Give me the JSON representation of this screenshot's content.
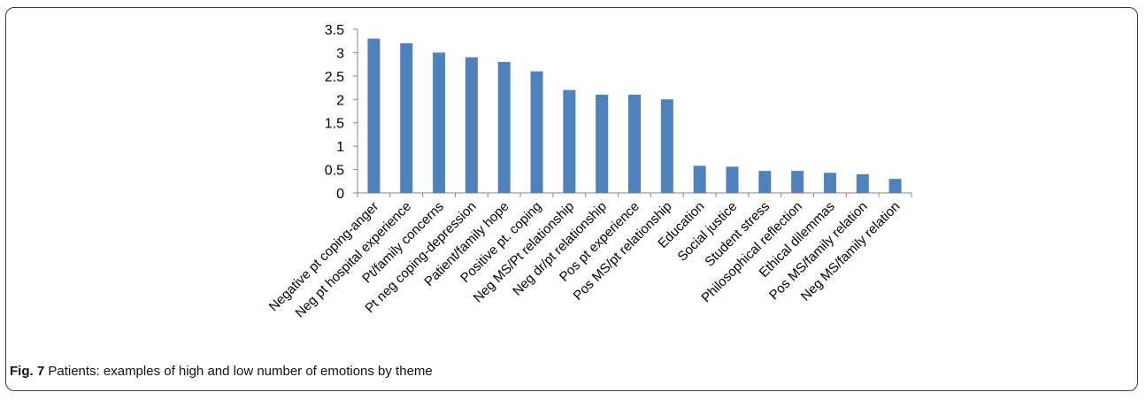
{
  "figure": {
    "label": "Fig. 7",
    "caption": "Patients: examples of high and low number of emotions by theme"
  },
  "colors": {
    "bar": "#4f81bd",
    "axis": "#868686",
    "text": "#000000"
  },
  "chart_data": {
    "type": "bar",
    "title": "",
    "xlabel": "",
    "ylabel": "",
    "ylim": [
      0,
      3.5
    ],
    "yticks": [
      "0",
      "0.5",
      "1",
      "1.5",
      "2",
      "2.5",
      "3",
      "3.5"
    ],
    "grid": false,
    "legend": "none",
    "categories": [
      "Negative pt coping-anger",
      "Neg pt hospital experience",
      "Pt/family concerns",
      "Pt neg coping-depression",
      "Patient/family hope",
      "Positive pt. coping",
      "Neg MS/Pt relationship",
      "Neg dr/pt relationship",
      "Pos pt experience",
      "Pos MS/pt relationship",
      "Education",
      "Social justice",
      "Student stress",
      "Philosophical reflection",
      "Ethical dilemmas",
      "Pos MS/family relation",
      "Neg MS/family relation"
    ],
    "values": [
      3.3,
      3.2,
      3.0,
      2.9,
      2.8,
      2.6,
      2.2,
      2.1,
      2.1,
      2.0,
      0.58,
      0.56,
      0.47,
      0.47,
      0.43,
      0.4,
      0.3
    ]
  }
}
